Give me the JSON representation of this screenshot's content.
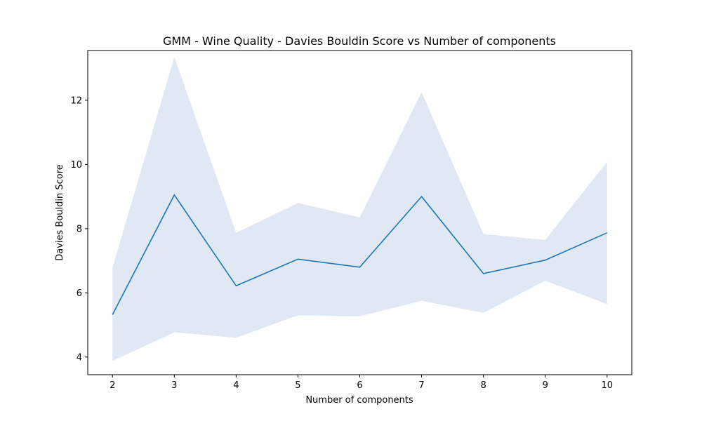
{
  "chart_data": {
    "type": "line",
    "title": "GMM - Wine Quality - Davies Bouldin Score vs Number of components",
    "xlabel": "Number of components",
    "ylabel": "Davies Bouldin Score",
    "x": [
      2,
      3,
      4,
      5,
      6,
      7,
      8,
      9,
      10
    ],
    "xlim": [
      1.6,
      10.4
    ],
    "ylim": [
      3.45,
      13.55
    ],
    "xticks": [
      2,
      3,
      4,
      5,
      6,
      7,
      8,
      9,
      10
    ],
    "yticks": [
      4,
      6,
      8,
      10,
      12
    ],
    "series": [
      {
        "values": [
          5.32,
          9.05,
          6.22,
          7.05,
          6.8,
          9.0,
          6.6,
          7.02,
          7.87
        ],
        "band_upper": [
          6.78,
          13.35,
          7.87,
          8.8,
          8.35,
          12.25,
          7.83,
          7.65,
          10.08
        ],
        "band_lower": [
          3.88,
          4.77,
          4.6,
          5.3,
          5.27,
          5.75,
          5.38,
          6.38,
          5.65
        ],
        "color": "#1f77b4",
        "band_color": "#dfe8f3"
      }
    ],
    "grid": false,
    "legend": "none"
  }
}
